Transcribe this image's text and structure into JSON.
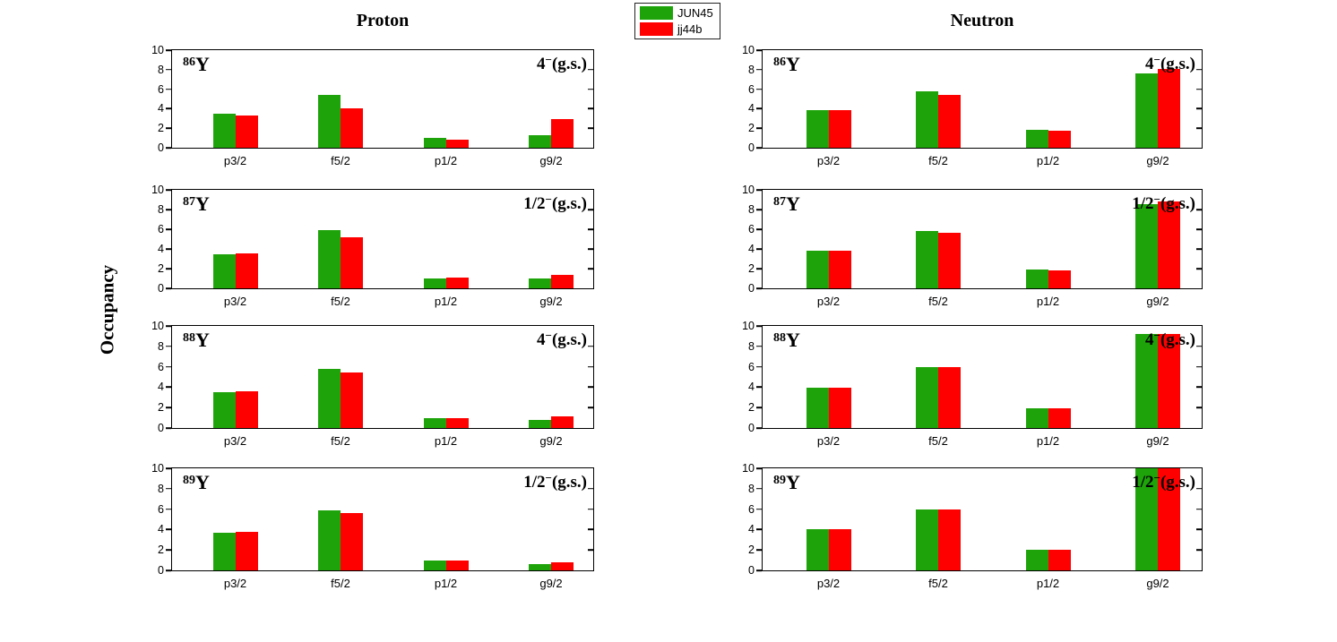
{
  "figure": {
    "ylabel": "Occupancy",
    "column_titles": [
      "Proton",
      "Neutron"
    ],
    "legend": [
      {
        "label": "JUN45",
        "color": "#1ea40a"
      },
      {
        "label": "jj44b",
        "color": "#ff0000"
      }
    ]
  },
  "chart_data": {
    "type": "bar",
    "categories": [
      "p3/2",
      "f5/2",
      "p1/2",
      "g9/2"
    ],
    "ylim": [
      0,
      10
    ],
    "yticks": [
      0,
      2,
      4,
      6,
      8,
      10
    ],
    "ylabel": "Occupancy",
    "grid": false,
    "legend_position": "top-center",
    "series_names": [
      "JUN45",
      "jj44b"
    ],
    "series_colors": [
      "#1ea40a",
      "#ff0000"
    ],
    "group_center_fractions": [
      0.15,
      0.4,
      0.65,
      0.9
    ],
    "panels": [
      {
        "column": "Proton",
        "mass": "86",
        "symbol": "Y",
        "jpi_base": "4",
        "jpi_sup": "−",
        "jpi_rest": "(g.s.)",
        "series": [
          {
            "name": "JUN45",
            "values": [
              3.45,
              5.45,
              1.0,
              1.25
            ]
          },
          {
            "name": "jj44b",
            "values": [
              3.3,
              4.05,
              0.85,
              2.95
            ]
          }
        ]
      },
      {
        "column": "Proton",
        "mass": "87",
        "symbol": "Y",
        "jpi_base": "1/2",
        "jpi_sup": "−",
        "jpi_rest": "(g.s.)",
        "series": [
          {
            "name": "JUN45",
            "values": [
              3.5,
              5.9,
              1.0,
              1.0
            ]
          },
          {
            "name": "jj44b",
            "values": [
              3.55,
              5.2,
              1.05,
              1.35
            ]
          }
        ]
      },
      {
        "column": "Proton",
        "mass": "88",
        "symbol": "Y",
        "jpi_base": "4",
        "jpi_sup": "−",
        "jpi_rest": "(g.s.)",
        "series": [
          {
            "name": "JUN45",
            "values": [
              3.55,
              5.75,
              1.0,
              0.8
            ]
          },
          {
            "name": "jj44b",
            "values": [
              3.6,
              5.45,
              1.0,
              1.1
            ]
          }
        ]
      },
      {
        "column": "Proton",
        "mass": "89",
        "symbol": "Y",
        "jpi_base": "1/2",
        "jpi_sup": "−",
        "jpi_rest": "(g.s.)",
        "series": [
          {
            "name": "JUN45",
            "values": [
              3.65,
              5.85,
              1.0,
              0.65
            ]
          },
          {
            "name": "jj44b",
            "values": [
              3.75,
              5.65,
              1.0,
              0.75
            ]
          }
        ]
      },
      {
        "column": "Neutron",
        "mass": "86",
        "symbol": "Y",
        "jpi_base": "4",
        "jpi_sup": "−",
        "jpi_rest": "(g.s.)",
        "series": [
          {
            "name": "JUN45",
            "values": [
              3.85,
              5.8,
              1.85,
              7.6
            ]
          },
          {
            "name": "jj44b",
            "values": [
              3.85,
              5.45,
              1.7,
              8.1
            ]
          }
        ]
      },
      {
        "column": "Neutron",
        "mass": "87",
        "symbol": "Y",
        "jpi_base": "1/2",
        "jpi_sup": "−",
        "jpi_rest": "(g.s.)",
        "series": [
          {
            "name": "JUN45",
            "values": [
              3.85,
              5.85,
              1.9,
              8.55
            ]
          },
          {
            "name": "jj44b",
            "values": [
              3.8,
              5.65,
              1.8,
              8.8
            ]
          }
        ]
      },
      {
        "column": "Neutron",
        "mass": "88",
        "symbol": "Y",
        "jpi_base": "4",
        "jpi_sup": "−",
        "jpi_rest": "(g.s.)",
        "series": [
          {
            "name": "JUN45",
            "values": [
              3.95,
              6.0,
              1.95,
              9.2
            ]
          },
          {
            "name": "jj44b",
            "values": [
              3.95,
              6.0,
              1.95,
              9.2
            ]
          }
        ]
      },
      {
        "column": "Neutron",
        "mass": "89",
        "symbol": "Y",
        "jpi_base": "1/2",
        "jpi_sup": "−",
        "jpi_rest": "(g.s.)",
        "series": [
          {
            "name": "JUN45",
            "values": [
              4.0,
              6.0,
              2.0,
              10.0
            ]
          },
          {
            "name": "jj44b",
            "values": [
              4.0,
              6.0,
              2.0,
              10.0
            ]
          }
        ]
      }
    ]
  }
}
